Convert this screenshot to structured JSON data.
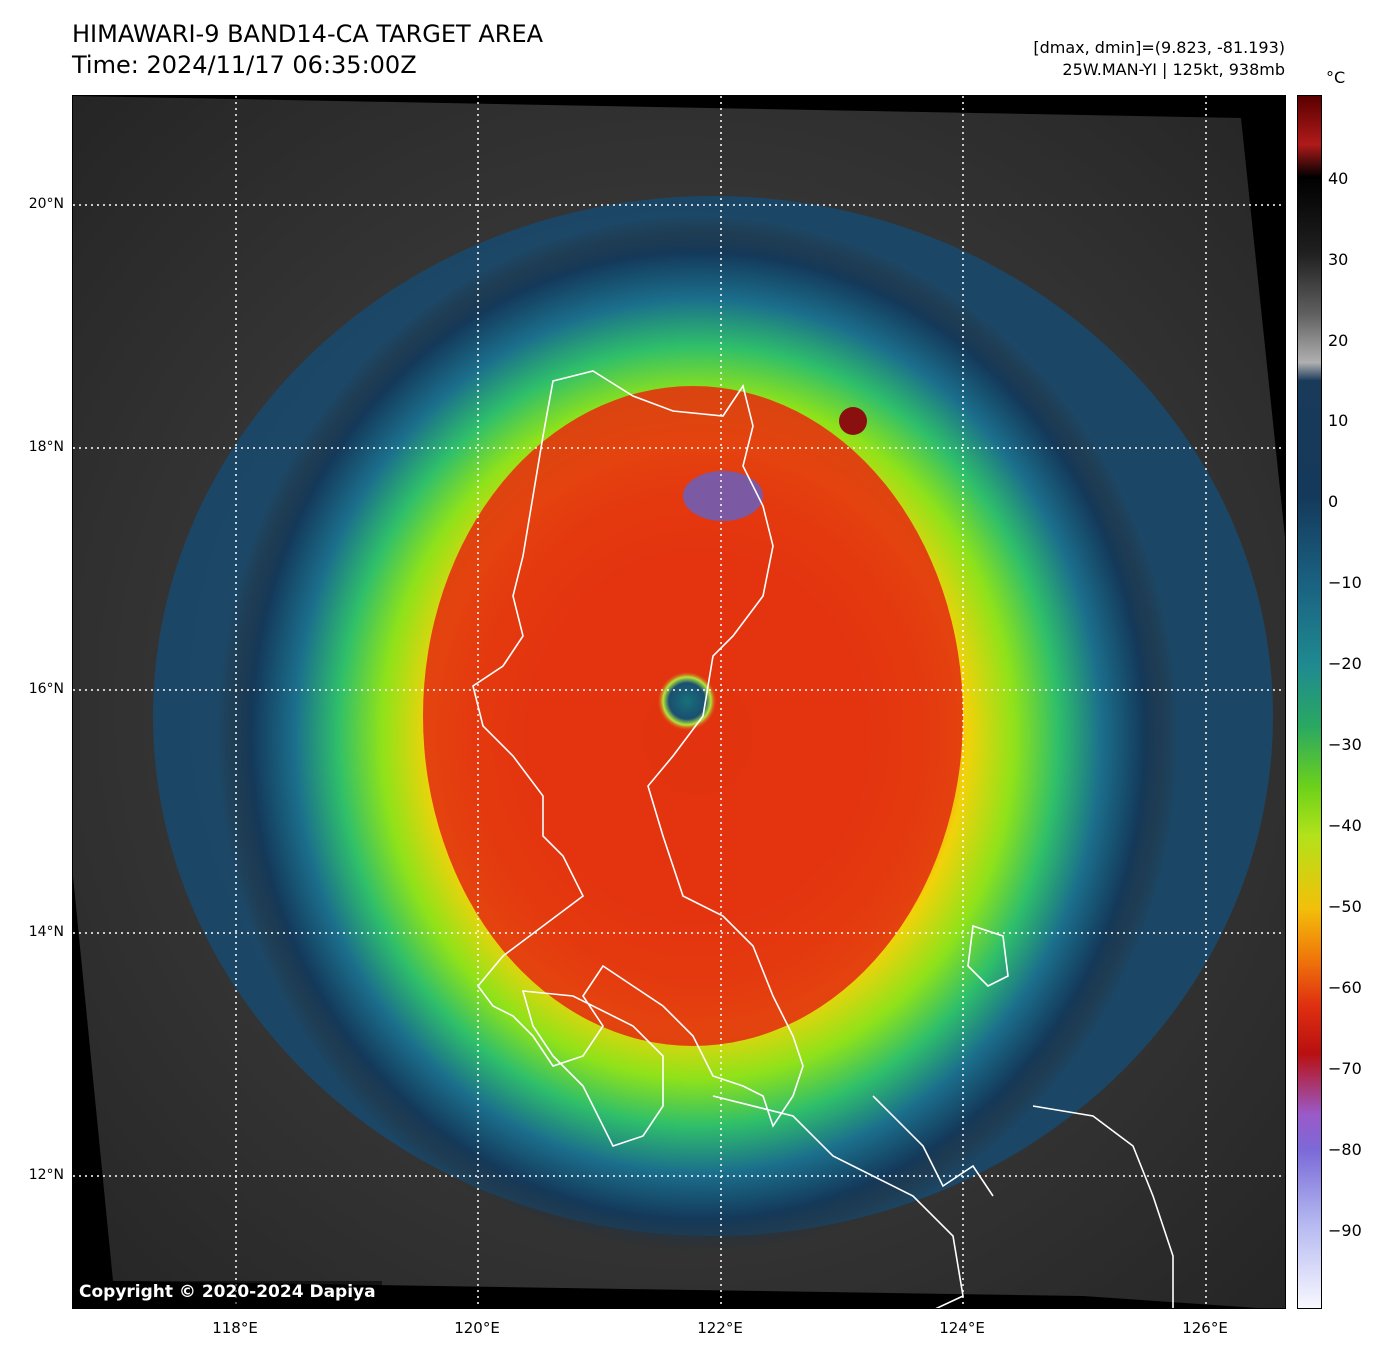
{
  "title": {
    "line1": "HIMAWARI-9 BAND14-CA TARGET AREA",
    "line2": "Time: 2024/11/17 06:35:00Z"
  },
  "meta": {
    "line1": "[dmax, dmin]=(9.823, -81.193)",
    "line2": "25W.MAN-YI | 125kt, 938mb"
  },
  "map": {
    "lon_range": [
      116.7,
      126.7
    ],
    "lat_range": [
      10.9,
      20.9
    ],
    "lat_labels": [
      {
        "lat": 20,
        "text": "20°N"
      },
      {
        "lat": 18,
        "text": "18°N"
      },
      {
        "lat": 16,
        "text": "16°N"
      },
      {
        "lat": 14,
        "text": "14°N"
      },
      {
        "lat": 12,
        "text": "12°N"
      }
    ],
    "lon_labels": [
      {
        "lon": 118,
        "text": "118°E"
      },
      {
        "lon": 120,
        "text": "120°E"
      },
      {
        "lon": 122,
        "text": "122°E"
      },
      {
        "lon": 124,
        "text": "124°E"
      },
      {
        "lon": 126,
        "text": "126°E"
      }
    ],
    "storm_center": {
      "lon": 121.7,
      "lat": 15.95
    },
    "copyright": "Copyright © 2020-2024 Dapiya"
  },
  "colorbar": {
    "unit": "°C",
    "range": [
      -100,
      50
    ],
    "ticks": [
      40,
      30,
      20,
      10,
      0,
      -10,
      -20,
      -30,
      -40,
      -50,
      -60,
      -70,
      -80,
      -90
    ],
    "tick_labels": [
      "40",
      "30",
      "20",
      "10",
      "0",
      "−10",
      "−20",
      "−30",
      "−40",
      "−50",
      "−60",
      "−70",
      "−80",
      "−90"
    ]
  },
  "colors": {
    "warm_cloudfree": "#3a3a3a",
    "cold_top": "#d62a10",
    "eye": "#1f6a7a"
  }
}
